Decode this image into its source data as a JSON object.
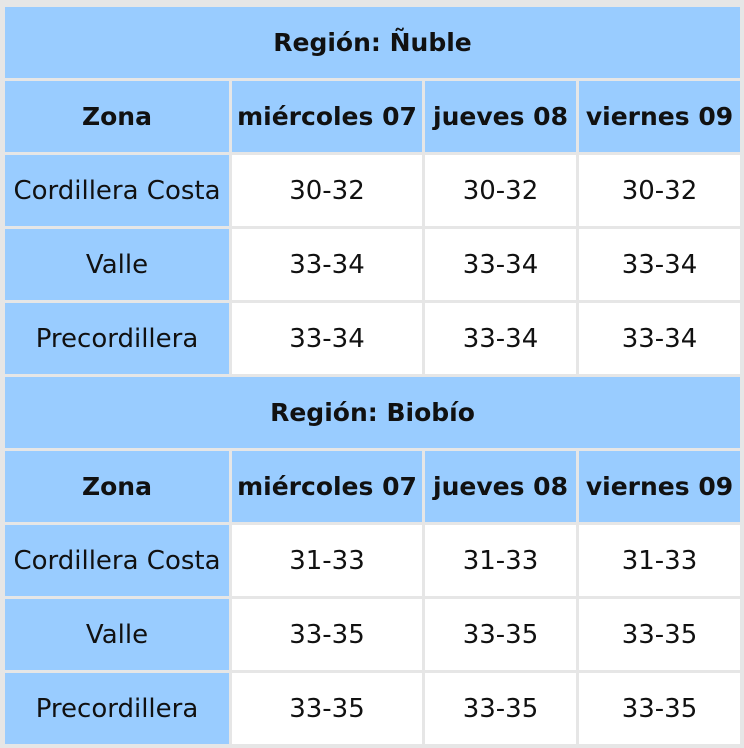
{
  "regions": [
    {
      "title": "Región: Ñuble",
      "headers": [
        "Zona",
        "miércoles 07",
        "jueves 08",
        "viernes 09"
      ],
      "rows": [
        {
          "zone": "Cordillera Costa",
          "values": [
            "30-32",
            "30-32",
            "30-32"
          ]
        },
        {
          "zone": "Valle",
          "values": [
            "33-34",
            "33-34",
            "33-34"
          ]
        },
        {
          "zone": "Precordillera",
          "values": [
            "33-34",
            "33-34",
            "33-34"
          ]
        }
      ]
    },
    {
      "title": "Región: Biobío",
      "headers": [
        "Zona",
        "miércoles 07",
        "jueves 08",
        "viernes 09"
      ],
      "rows": [
        {
          "zone": "Cordillera Costa",
          "values": [
            "31-33",
            "31-33",
            "31-33"
          ]
        },
        {
          "zone": "Valle",
          "values": [
            "33-35",
            "33-35",
            "33-35"
          ]
        },
        {
          "zone": "Precordillera",
          "values": [
            "33-35",
            "33-35",
            "33-35"
          ]
        }
      ]
    }
  ],
  "colors": {
    "header_bg": "#99ccff",
    "cell_bg": "#ffffff",
    "border": "#e6e6e6"
  }
}
